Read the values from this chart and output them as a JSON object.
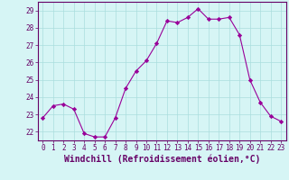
{
  "x": [
    0,
    1,
    2,
    3,
    4,
    5,
    6,
    7,
    8,
    9,
    10,
    11,
    12,
    13,
    14,
    15,
    16,
    17,
    18,
    19,
    20,
    21,
    22,
    23
  ],
  "y": [
    22.8,
    23.5,
    23.6,
    23.3,
    21.9,
    21.7,
    21.7,
    22.8,
    24.5,
    25.5,
    26.1,
    27.1,
    28.4,
    28.3,
    28.6,
    29.1,
    28.5,
    28.5,
    28.6,
    27.6,
    25.0,
    23.7,
    22.9,
    22.6
  ],
  "line_color": "#990099",
  "marker": "D",
  "marker_size": 2.2,
  "bg_color": "#d6f5f5",
  "grid_color": "#aadddd",
  "xlabel": "Windchill (Refroidissement éolien,°C)",
  "xlabel_color": "#660066",
  "ylim": [
    21.5,
    29.5
  ],
  "yticks": [
    22,
    23,
    24,
    25,
    26,
    27,
    28,
    29
  ],
  "xticks": [
    0,
    1,
    2,
    3,
    4,
    5,
    6,
    7,
    8,
    9,
    10,
    11,
    12,
    13,
    14,
    15,
    16,
    17,
    18,
    19,
    20,
    21,
    22,
    23
  ],
  "tick_color": "#660066",
  "tick_fontsize": 5.5,
  "xlabel_fontsize": 7.0,
  "line_width": 0.8
}
